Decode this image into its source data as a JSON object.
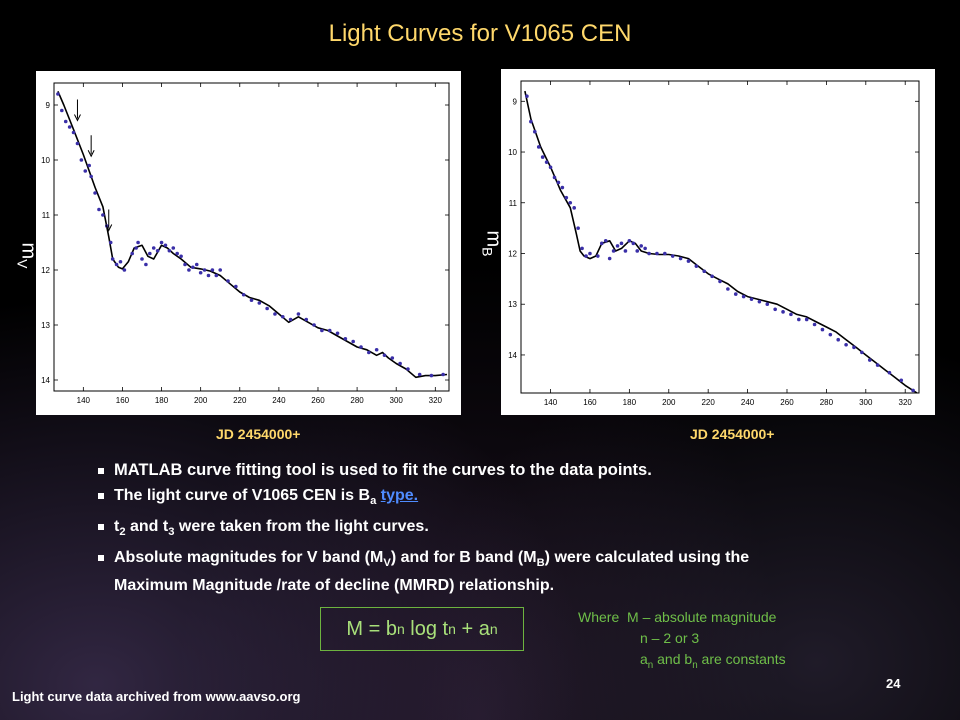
{
  "slide": {
    "title": "Light Curves for V1065 CEN",
    "footer_source": "Light curve data archived from www.aavso.org",
    "page_number": "24"
  },
  "plots": {
    "left": {
      "ylabel_main": "m",
      "ylabel_sub": "V",
      "xlabel": "JD 2454000+"
    },
    "right": {
      "ylabel_main": "m",
      "ylabel_sub": "B",
      "xlabel": "JD 2454000+"
    }
  },
  "bullets": {
    "b1": "MATLAB curve fitting tool is used to fit the curves to the data points.",
    "b2_pre": "The light curve of V1065 CEN is B",
    "b2_sub": "a",
    "b2_link": "type.",
    "b3_t2": "t",
    "b3_t2sub": "2",
    "b3_and": " and t",
    "b3_t3sub": "3",
    "b3_rest": " were taken from the light curves.",
    "b4_pre": "Absolute magnitudes for V band (M",
    "b4_subV": "V",
    "b4_mid": ") and for B band (M",
    "b4_subB": "B",
    "b4_end": ") were calculated using the",
    "b4_cont": "Maximum Magnitude /rate of decline (MMRD) relationship."
  },
  "formula": {
    "m_eq_b": "M = b",
    "sub_n1": "n",
    "log_t": " log t",
    "sub_n2": "n",
    "plus_a": " + a",
    "sub_n3": "n"
  },
  "where_note": {
    "line1": "Where  M – absolute magnitude",
    "line2": "n – 2 or 3",
    "line3_a": "a",
    "line3_asub": "n",
    "line3_mid": " and b",
    "line3_bsub": "n",
    "line3_end": " are constants"
  },
  "chart_data": [
    {
      "type": "scatter",
      "xlabel": "JD 2454000+",
      "ylabel": "mV",
      "xlim": [
        125,
        327
      ],
      "ylim": [
        14.2,
        8.6
      ],
      "y_inverted": true,
      "xticks": [
        140,
        160,
        180,
        200,
        220,
        240,
        260,
        280,
        300,
        320
      ],
      "yticks": [
        9,
        10,
        11,
        12,
        13,
        14
      ],
      "arrows_at": [
        [
          137,
          9.3
        ],
        [
          144,
          9.95
        ],
        [
          153,
          11.3
        ]
      ],
      "fit_curve": {
        "x": [
          127,
          130,
          135,
          140,
          143,
          146,
          150,
          153,
          155,
          158,
          160,
          163,
          166,
          170,
          173,
          176,
          180,
          183,
          186,
          190,
          195,
          200,
          205,
          210,
          215,
          220,
          225,
          230,
          235,
          240,
          245,
          250,
          255,
          260,
          265,
          270,
          275,
          280,
          285,
          290,
          293,
          296,
          300,
          305,
          310,
          315,
          320,
          326
        ],
        "y": [
          8.75,
          9.0,
          9.45,
          9.9,
          10.2,
          10.5,
          10.85,
          11.4,
          11.8,
          11.95,
          11.98,
          11.85,
          11.6,
          11.55,
          11.75,
          11.8,
          11.55,
          11.6,
          11.7,
          11.8,
          11.95,
          11.98,
          12.02,
          12.1,
          12.25,
          12.4,
          12.5,
          12.55,
          12.65,
          12.8,
          12.95,
          12.85,
          12.95,
          13.05,
          13.1,
          13.2,
          13.3,
          13.4,
          13.45,
          13.55,
          13.5,
          13.6,
          13.7,
          13.8,
          13.95,
          13.92,
          13.92,
          13.9
        ]
      },
      "points": {
        "x": [
          127,
          129,
          131,
          133,
          135,
          137,
          139,
          141,
          143,
          144,
          146,
          148,
          150,
          152,
          154,
          155,
          157,
          159,
          161,
          165,
          167,
          168,
          170,
          172,
          174,
          176,
          178,
          180,
          182,
          184,
          186,
          188,
          190,
          192,
          194,
          196,
          198,
          200,
          202,
          204,
          206,
          208,
          210,
          214,
          218,
          222,
          226,
          230,
          234,
          238,
          242,
          246,
          250,
          254,
          258,
          262,
          266,
          270,
          274,
          278,
          282,
          286,
          290,
          294,
          298,
          302,
          306,
          312,
          318,
          324
        ],
        "y": [
          8.8,
          9.1,
          9.3,
          9.4,
          9.5,
          9.7,
          10.0,
          10.2,
          10.1,
          10.3,
          10.6,
          10.9,
          11.0,
          11.2,
          11.5,
          11.8,
          11.9,
          11.85,
          12.0,
          11.7,
          11.6,
          11.5,
          11.8,
          11.9,
          11.7,
          11.6,
          11.65,
          11.5,
          11.55,
          11.65,
          11.6,
          11.7,
          11.75,
          11.9,
          12.0,
          11.95,
          11.9,
          12.05,
          12.0,
          12.1,
          12.0,
          12.1,
          12.0,
          12.2,
          12.3,
          12.45,
          12.55,
          12.6,
          12.7,
          12.8,
          12.85,
          12.9,
          12.8,
          12.9,
          13.0,
          13.1,
          13.1,
          13.15,
          13.25,
          13.3,
          13.4,
          13.5,
          13.45,
          13.55,
          13.6,
          13.7,
          13.8,
          13.9,
          13.92,
          13.9
        ]
      }
    },
    {
      "type": "scatter",
      "xlabel": "JD 2454000+",
      "ylabel": "mB",
      "xlim": [
        125,
        327
      ],
      "ylim": [
        14.75,
        8.6
      ],
      "y_inverted": true,
      "xticks": [
        140,
        160,
        180,
        200,
        220,
        240,
        260,
        280,
        300,
        320
      ],
      "yticks": [
        9,
        10,
        11,
        12,
        13,
        14
      ],
      "fit_curve": {
        "x": [
          127,
          130,
          135,
          140,
          145,
          150,
          153,
          155,
          157,
          160,
          163,
          166,
          170,
          173,
          176,
          180,
          183,
          186,
          190,
          195,
          200,
          205,
          210,
          215,
          220,
          225,
          230,
          235,
          240,
          245,
          250,
          255,
          260,
          265,
          270,
          275,
          280,
          285,
          290,
          295,
          300,
          305,
          310,
          315,
          320,
          326
        ],
        "y": [
          8.8,
          9.35,
          9.9,
          10.3,
          10.75,
          11.1,
          11.6,
          11.95,
          12.05,
          12.1,
          12.05,
          11.8,
          11.75,
          11.95,
          11.9,
          11.75,
          11.8,
          11.95,
          12.0,
          12.02,
          12.02,
          12.05,
          12.1,
          12.25,
          12.4,
          12.5,
          12.6,
          12.75,
          12.85,
          12.9,
          12.95,
          13.0,
          13.1,
          13.2,
          13.25,
          13.35,
          13.45,
          13.55,
          13.7,
          13.85,
          14.0,
          14.15,
          14.3,
          14.45,
          14.6,
          14.75
        ]
      },
      "points": {
        "x": [
          128,
          130,
          132,
          134,
          136,
          138,
          140,
          142,
          144,
          146,
          148,
          150,
          152,
          154,
          156,
          158,
          160,
          164,
          166,
          168,
          170,
          172,
          174,
          176,
          178,
          180,
          182,
          184,
          186,
          188,
          190,
          194,
          198,
          202,
          206,
          210,
          214,
          218,
          222,
          226,
          230,
          234,
          238,
          242,
          246,
          250,
          254,
          258,
          262,
          266,
          270,
          274,
          278,
          282,
          286,
          290,
          294,
          298,
          302,
          306,
          312,
          318,
          324
        ],
        "y": [
          8.9,
          9.4,
          9.6,
          9.9,
          10.1,
          10.2,
          10.3,
          10.5,
          10.6,
          10.7,
          10.9,
          11.0,
          11.1,
          11.5,
          11.9,
          12.05,
          12.0,
          12.05,
          11.8,
          11.75,
          12.1,
          11.95,
          11.85,
          11.8,
          11.95,
          11.75,
          11.8,
          11.95,
          11.85,
          11.9,
          12.0,
          12.0,
          12.0,
          12.05,
          12.1,
          12.15,
          12.25,
          12.35,
          12.45,
          12.55,
          12.7,
          12.8,
          12.85,
          12.9,
          12.95,
          13.0,
          13.1,
          13.15,
          13.2,
          13.3,
          13.3,
          13.4,
          13.5,
          13.6,
          13.7,
          13.8,
          13.85,
          13.95,
          14.1,
          14.2,
          14.35,
          14.5,
          14.7
        ]
      }
    }
  ]
}
